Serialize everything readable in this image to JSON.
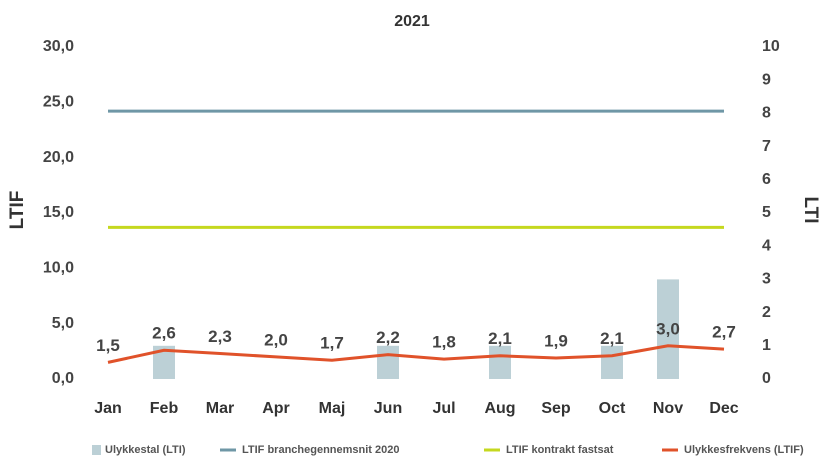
{
  "chart_data": {
    "type": "bar",
    "title": "2021",
    "y_label": "LTIF",
    "y2_label": "LTI",
    "categories": [
      "Jan",
      "Feb",
      "Mar",
      "Apr",
      "Maj",
      "Jun",
      "Jul",
      "Aug",
      "Sep",
      "Oct",
      "Nov",
      "Dec"
    ],
    "ylim": [
      0,
      30
    ],
    "yticks": [
      {
        "value": 0,
        "label": "0,0"
      },
      {
        "value": 5,
        "label": "5,0"
      },
      {
        "value": 10,
        "label": "10,0"
      },
      {
        "value": 15,
        "label": "15,0"
      },
      {
        "value": 20,
        "label": "20,0"
      },
      {
        "value": 25,
        "label": "25,0"
      },
      {
        "value": 30,
        "label": "30,0"
      }
    ],
    "y2lim": [
      0,
      10
    ],
    "y2ticks": [
      0,
      1,
      2,
      3,
      4,
      5,
      6,
      7,
      8,
      9,
      10
    ],
    "series": [
      {
        "name": "Ulykkestal (LTI)",
        "type": "bar",
        "axis": "y2",
        "color": "#bcd0d6",
        "values": [
          0,
          1,
          0,
          0,
          0,
          1,
          0,
          1,
          0,
          1,
          3,
          0
        ]
      },
      {
        "name": "LTIF branchegennemsnit 2020",
        "type": "line",
        "color": "#6f97a6",
        "values": [
          24.2,
          24.2,
          24.2,
          24.2,
          24.2,
          24.2,
          24.2,
          24.2,
          24.2,
          24.2,
          24.2,
          24.2
        ]
      },
      {
        "name": "LTIF kontrakt fastsat",
        "type": "line",
        "color": "#c5d81f",
        "values": [
          13.7,
          13.7,
          13.7,
          13.7,
          13.7,
          13.7,
          13.7,
          13.7,
          13.7,
          13.7,
          13.7,
          13.7
        ]
      },
      {
        "name": "Ulykkesfrekvens (LTIF)",
        "type": "line",
        "color": "#e0522a",
        "values": [
          1.5,
          2.6,
          2.3,
          2.0,
          1.7,
          2.2,
          1.8,
          2.1,
          1.9,
          2.1,
          3.0,
          2.7
        ],
        "value_labels": [
          "1,5",
          "2,6",
          "2,3",
          "2,0",
          "1,7",
          "2,2",
          "1,8",
          "2,1",
          "1,9",
          "2,1",
          "3,0",
          "2,7"
        ]
      }
    ]
  }
}
